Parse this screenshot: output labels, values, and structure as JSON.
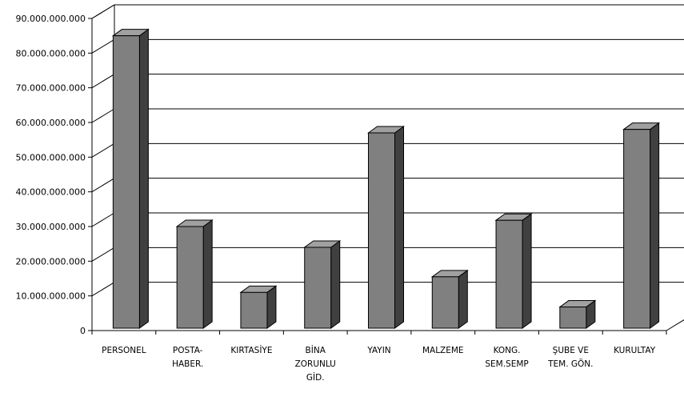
{
  "chart_data": {
    "type": "bar",
    "style": "3d-column",
    "categories": [
      [
        "PERSONEL"
      ],
      [
        "POSTA-",
        "HABER."
      ],
      [
        "KIRTASİYE"
      ],
      [
        "BİNA",
        "ZORUNLU",
        "GİD."
      ],
      [
        "YAYIN"
      ],
      [
        "MALZEME"
      ],
      [
        "KONG.",
        "SEM.SEMP"
      ],
      [
        "ŞUBE VE",
        "TEM. GÖN."
      ],
      [
        "KURULTAY"
      ]
    ],
    "values": [
      85000000000,
      30000000000,
      11000000000,
      24000000000,
      57000000000,
      15500000000,
      31800000000,
      6800000000,
      58000000000
    ],
    "ylim": [
      0,
      90000000000
    ],
    "yticks": [
      {
        "value": 0,
        "label": "0"
      },
      {
        "value": 10000000000,
        "label": "10.000.000.000"
      },
      {
        "value": 20000000000,
        "label": "20.000.000.000"
      },
      {
        "value": 30000000000,
        "label": "30.000.000.000"
      },
      {
        "value": 40000000000,
        "label": "40.000.000.000"
      },
      {
        "value": 50000000000,
        "label": "50.000.000.000"
      },
      {
        "value": 60000000000,
        "label": "60.000.000.000"
      },
      {
        "value": 70000000000,
        "label": "70.000.000.000"
      },
      {
        "value": 80000000000,
        "label": "80.000.000.000"
      },
      {
        "value": 90000000000,
        "label": "90.000.000.000"
      }
    ],
    "title": "",
    "xlabel": "",
    "ylabel": "",
    "grid": true,
    "colors": {
      "bar_front": "#808080",
      "bar_side": "#404040",
      "bar_top": "#a0a0a0",
      "grid": "#000000"
    }
  }
}
